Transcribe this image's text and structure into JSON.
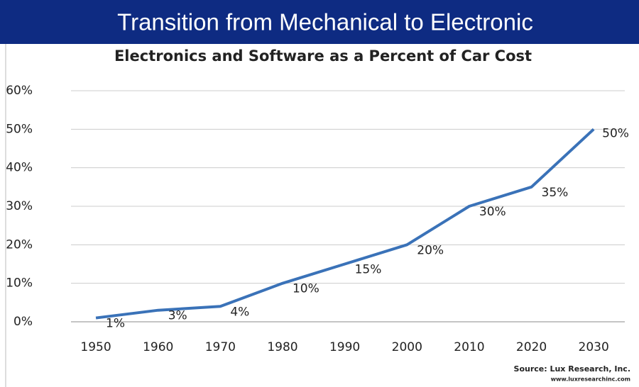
{
  "header": {
    "title": "Transition from Mechanical to Electronic"
  },
  "chart_data": {
    "type": "line",
    "title": "Electronics and Software as a Percent of Car Cost",
    "x": [
      1950,
      1960,
      1970,
      1980,
      1990,
      2000,
      2010,
      2020,
      2030
    ],
    "series": [
      {
        "name": "Electronics and Software",
        "color": "#3a72b8",
        "values": [
          1,
          3,
          4,
          10,
          15,
          20,
          30,
          35,
          50
        ],
        "value_labels": [
          "1%",
          "3%",
          "4%",
          "10%",
          "15%",
          "20%",
          "30%",
          "35%",
          "50%"
        ]
      }
    ],
    "xlim": [
      1946,
      2035
    ],
    "xticks": [
      1950,
      1960,
      1970,
      1980,
      1990,
      2000,
      2010,
      2020,
      2030
    ],
    "ylim": [
      0,
      60
    ],
    "yticks": [
      {
        "value": 0,
        "label": "0%"
      },
      {
        "value": 10,
        "label": "10%"
      },
      {
        "value": 20,
        "label": "20%"
      },
      {
        "value": 30,
        "label": "30%"
      },
      {
        "value": 40,
        "label": "40%"
      },
      {
        "value": 50,
        "label": "50%"
      },
      {
        "value": 60,
        "label": "60%"
      }
    ],
    "grid": true,
    "source": "Source: Lux Research, Inc.",
    "source_url": "www.luxresearchinc.com"
  }
}
